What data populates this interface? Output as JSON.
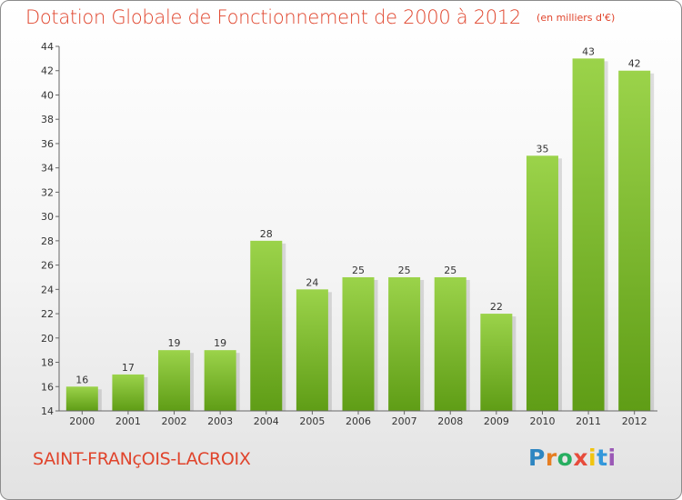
{
  "title": "Dotation Globale de Fonctionnement de 2000 à 2012",
  "subtitle": "(en milliers d'€)",
  "commune": "SAINT-FRANçOIS-LACROIX",
  "logo": {
    "text": "Proxiti",
    "colors": [
      "#2e86c1",
      "#e67e22",
      "#27ae60",
      "#e74c3c",
      "#f1c40f",
      "#3498db",
      "#9b59b6"
    ]
  },
  "chart_data": {
    "type": "bar",
    "categories": [
      "2000",
      "2001",
      "2002",
      "2003",
      "2004",
      "2005",
      "2006",
      "2007",
      "2008",
      "2009",
      "2010",
      "2011",
      "2012"
    ],
    "values": [
      16,
      17,
      19,
      19,
      28,
      24,
      25,
      25,
      25,
      22,
      35,
      43,
      42
    ],
    "ylim": [
      14,
      44
    ],
    "yticks": [
      14,
      16,
      18,
      20,
      22,
      24,
      26,
      28,
      30,
      32,
      34,
      36,
      38,
      40,
      42,
      44
    ],
    "grid": false,
    "bar_color": "#7cbb2a"
  }
}
